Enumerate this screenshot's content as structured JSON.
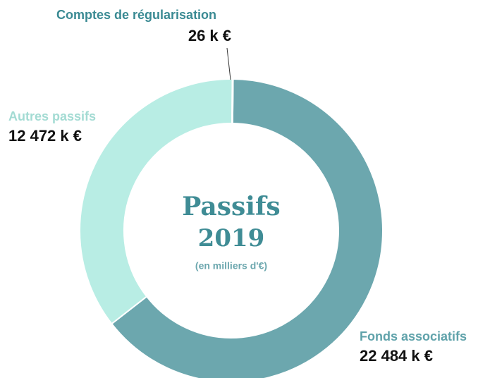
{
  "chart_data": {
    "type": "donut",
    "title": "Passifs",
    "subtitle": "2019",
    "note": "(en milliers d'€)",
    "categories": [
      "Fonds associatifs",
      "Autres passifs",
      "Comptes de régularisation"
    ],
    "values": [
      22484,
      12472,
      26
    ],
    "value_labels": [
      "22 484 k €",
      "12 472 k €",
      "26 k €"
    ],
    "colors": [
      "#6ca7ae",
      "#b8ede4",
      "#9fd6cf"
    ]
  }
}
